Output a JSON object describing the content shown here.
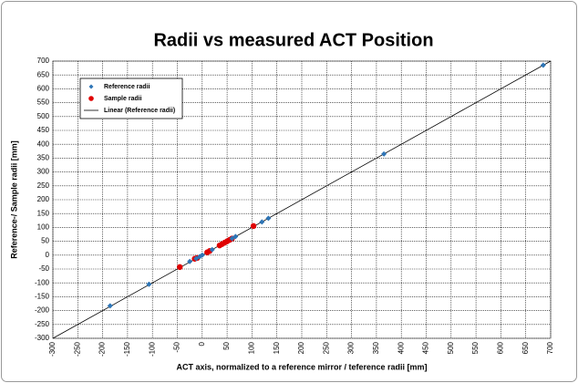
{
  "chart_data": {
    "type": "scatter",
    "title": "Radii vs measured ACT Position",
    "x_label": "ACT axis, normalized to a reference mirror / teference radii [mm]",
    "y_label": "Reference-/ Sample radii [mm]",
    "xlim": [
      -300,
      700
    ],
    "ylim": [
      -300,
      700
    ],
    "xticks": [
      -300,
      -250,
      -200,
      -150,
      -100,
      -50,
      0,
      50,
      100,
      150,
      200,
      250,
      300,
      350,
      400,
      450,
      500,
      550,
      600,
      650,
      700
    ],
    "yticks": [
      -300,
      -250,
      -200,
      -150,
      -100,
      -50,
      0,
      50,
      100,
      150,
      200,
      250,
      300,
      350,
      400,
      450,
      500,
      550,
      600,
      650,
      700
    ],
    "grid": true,
    "legend": "upper left",
    "series": [
      {
        "name": "Reference radii",
        "color": "#2e75b6",
        "marker": "diamond",
        "x": [
          -185,
          -107,
          -25,
          -12,
          -5,
          0,
          20,
          60,
          67,
          120,
          133,
          365,
          685
        ],
        "values": [
          -183,
          -105,
          -23,
          -12,
          -5,
          0,
          20,
          60,
          67,
          120,
          133,
          365,
          685
        ]
      },
      {
        "name": "Sample radii",
        "color": "#e00000",
        "marker": "circle",
        "x": [
          -45,
          -15,
          -10,
          10,
          15,
          35,
          40,
          45,
          50,
          55,
          60,
          103
        ],
        "values": [
          -43,
          -13,
          -10,
          10,
          15,
          35,
          40,
          45,
          50,
          55,
          60,
          105
        ]
      },
      {
        "name": "Linear (Reference radii)",
        "color": "#000000",
        "marker": "line",
        "x": [
          -300,
          700
        ],
        "values": [
          -300,
          700
        ]
      }
    ]
  }
}
